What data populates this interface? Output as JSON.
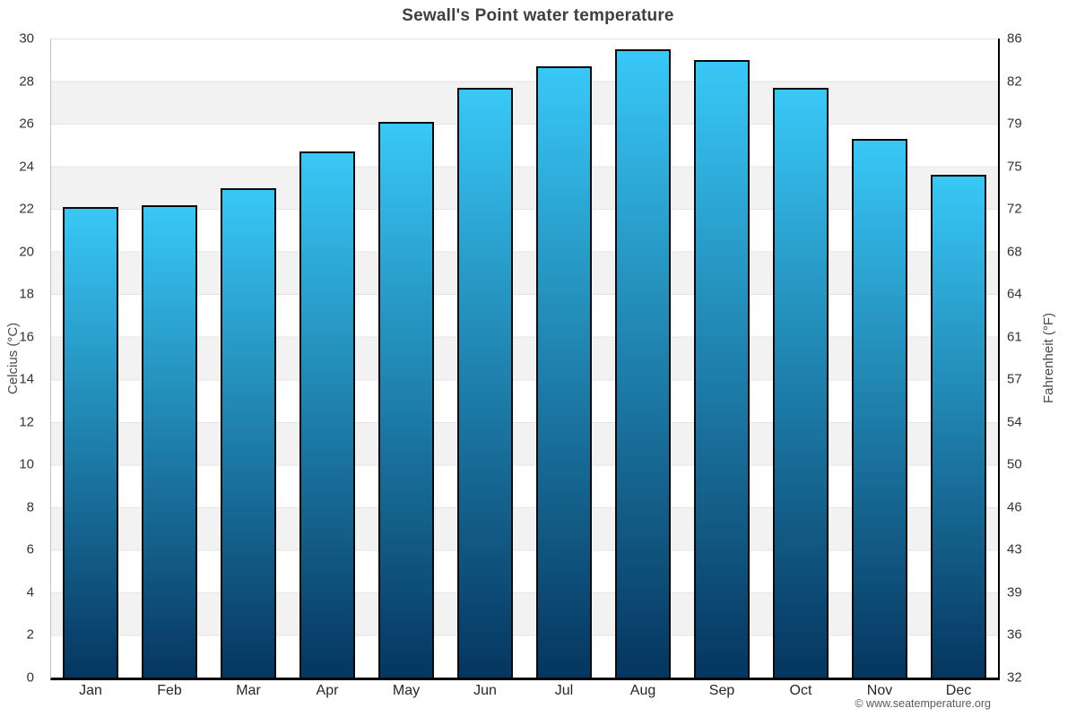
{
  "title": "Sewall's Point water temperature",
  "footer": "© www.seatemperature.org",
  "colors": {
    "bar_gradient_top": "#38c8f7",
    "bar_gradient_bottom": "#05365f",
    "bar_border": "#0a0a0a",
    "band_light": "#ffffff",
    "band_dark": "#f2f2f2",
    "gridline": "#e4e4e4",
    "axis_text": "#333333",
    "title_text": "#3f3f3f",
    "footer_text": "#5a5a5a"
  },
  "chart_data": {
    "type": "bar",
    "title": "Sewall's Point water temperature",
    "categories": [
      "Jan",
      "Feb",
      "Mar",
      "Apr",
      "May",
      "Jun",
      "Jul",
      "Aug",
      "Sep",
      "Oct",
      "Nov",
      "Dec"
    ],
    "values": [
      22.0,
      22.1,
      22.9,
      24.6,
      26.0,
      27.6,
      28.6,
      29.4,
      28.9,
      27.6,
      25.2,
      23.5
    ],
    "unit": "°C",
    "ylabel_left": "Celcius (°C)",
    "ylabel_right": "Fahrenheit (°F)",
    "ylim": [
      0,
      30
    ],
    "y_ticks_celsius": [
      0,
      2,
      4,
      6,
      8,
      10,
      12,
      14,
      16,
      18,
      20,
      22,
      24,
      26,
      28,
      30
    ],
    "y_tick_labels_fahrenheit": [
      "32",
      "36",
      "39",
      "43",
      "46",
      "50",
      "54",
      "57",
      "61",
      "64",
      "68",
      "72",
      "75",
      "79",
      "82",
      "86"
    ],
    "grid": true,
    "legend": false,
    "gridline_step_celsius": 2,
    "band_alternation": "white/gray every 2°C starting white at top"
  }
}
